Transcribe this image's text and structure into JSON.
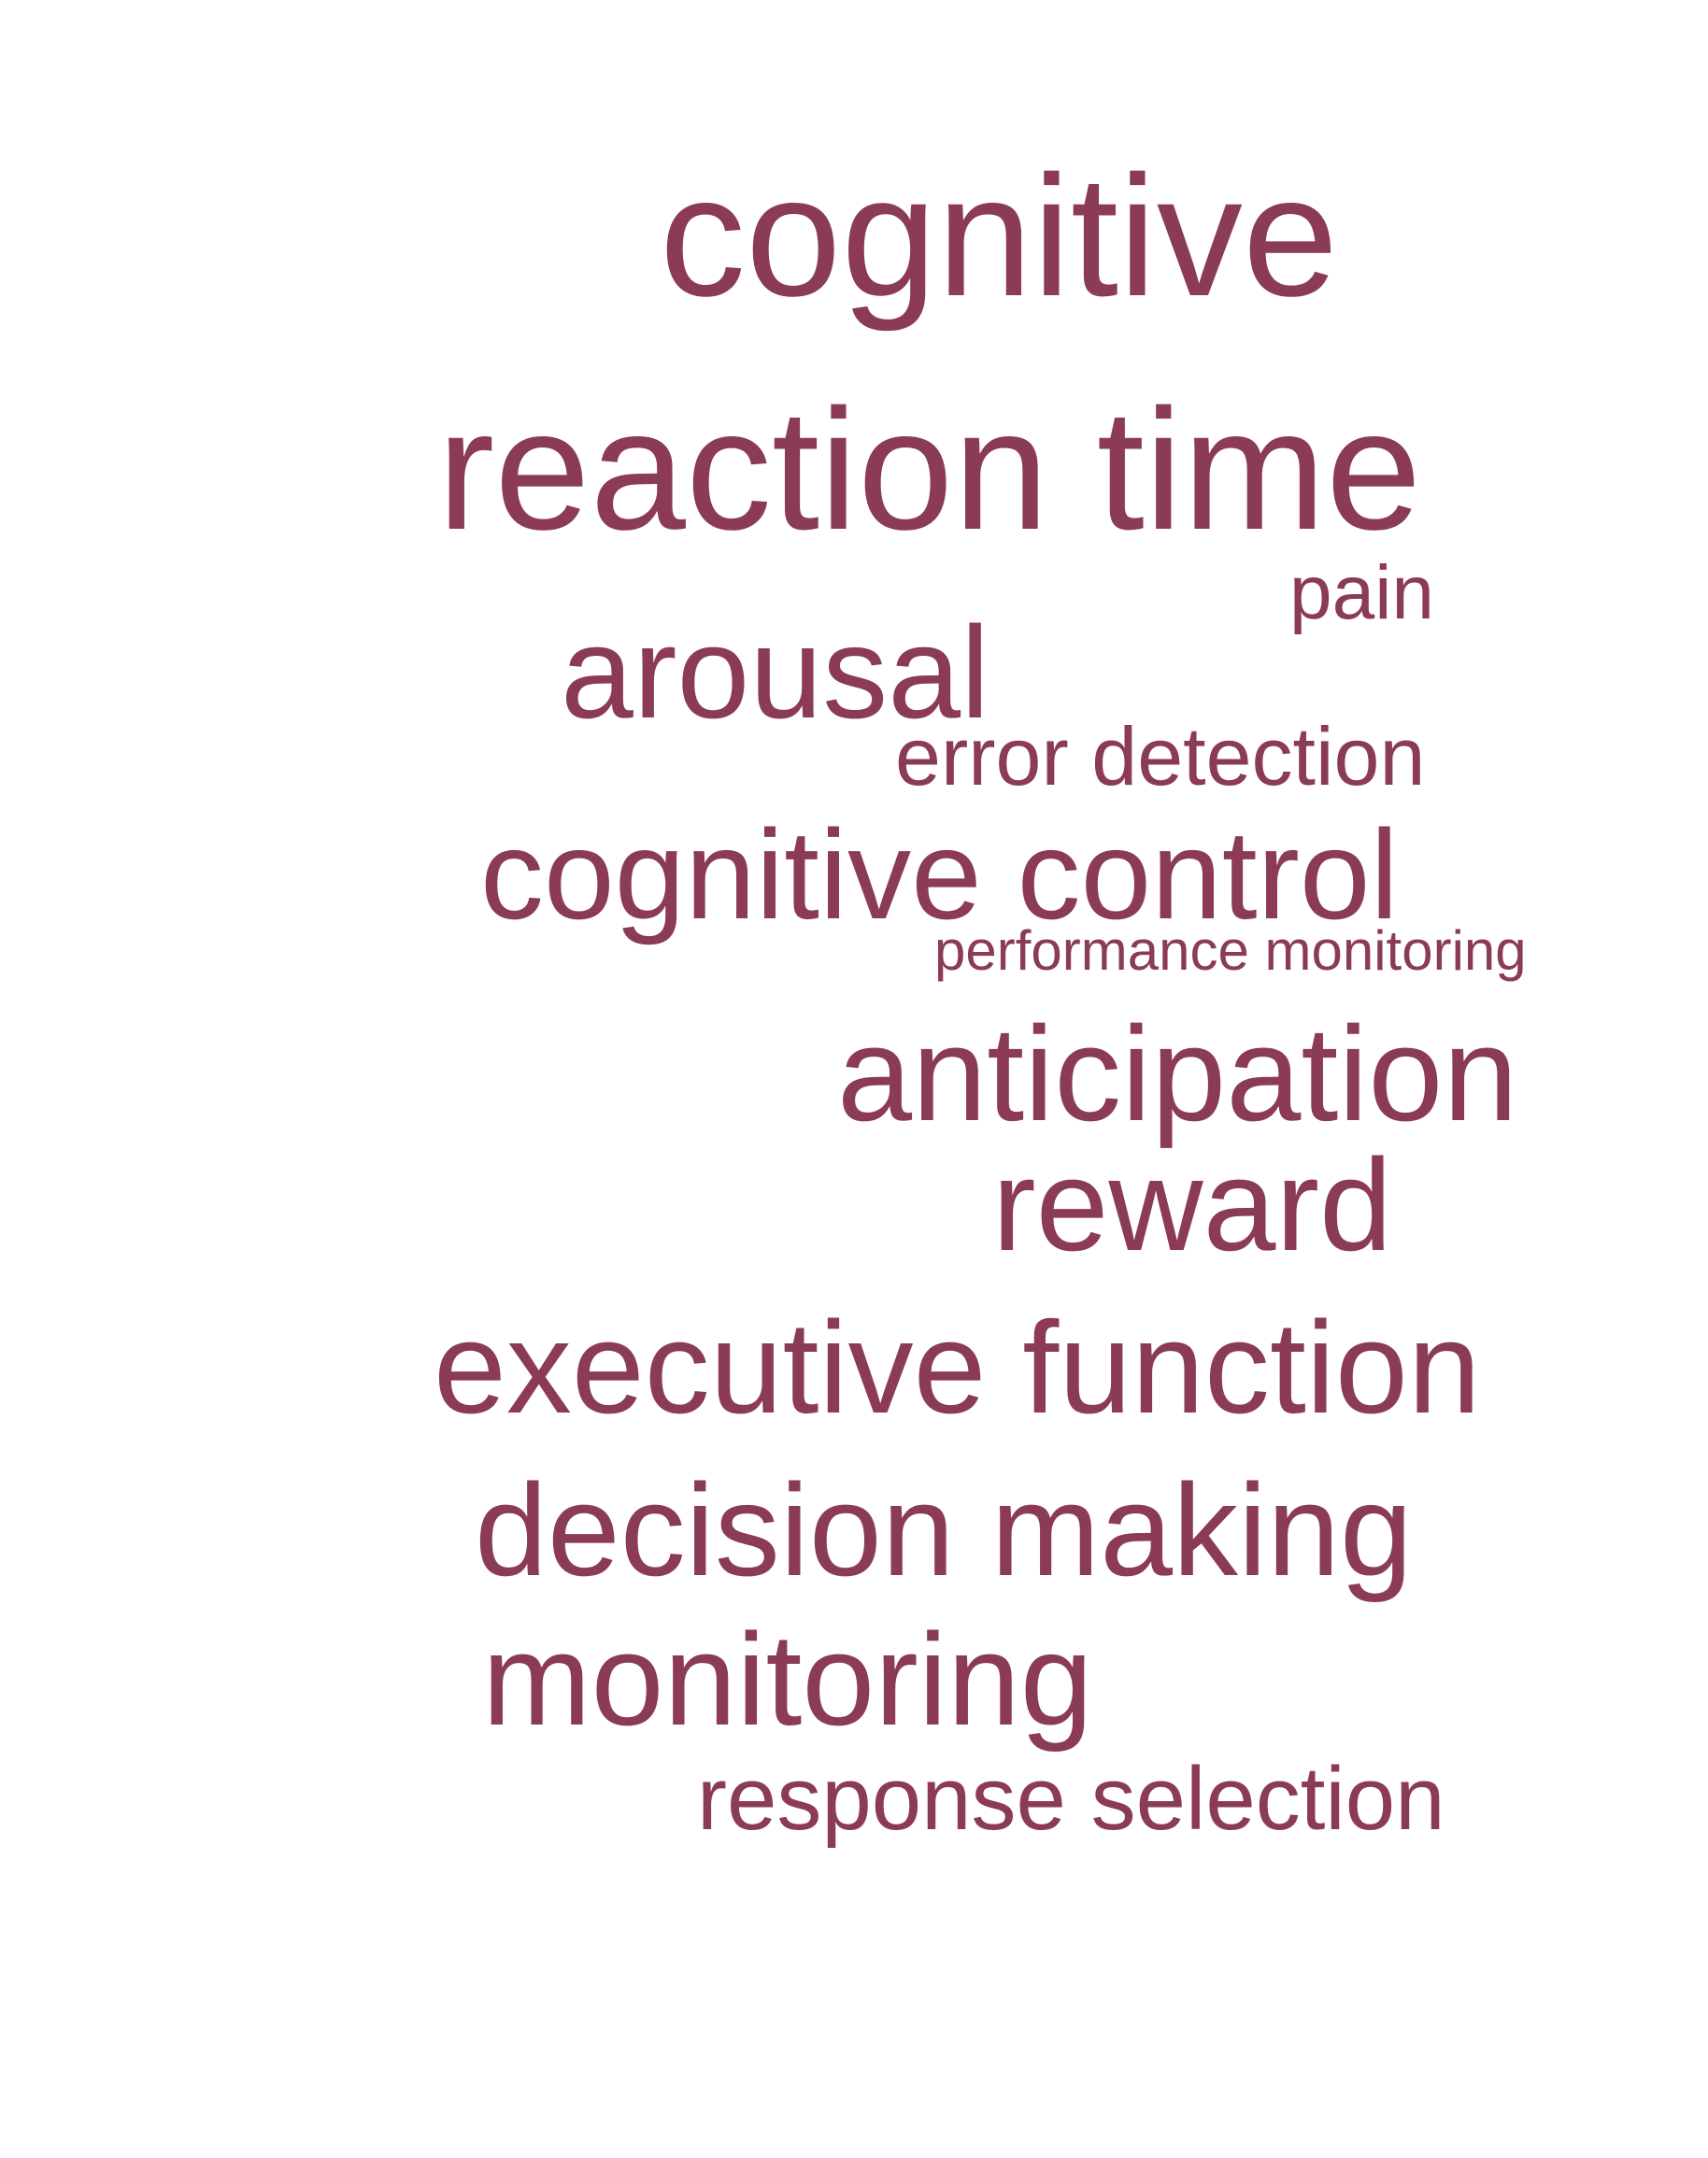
{
  "style": {
    "word_color": "#8b3b57",
    "background": "#ffffff"
  },
  "words": [
    {
      "id": "cognitive",
      "text": "cognitive"
    },
    {
      "id": "reaction-time",
      "text": "reaction time"
    },
    {
      "id": "pain",
      "text": "pain"
    },
    {
      "id": "arousal",
      "text": "arousal"
    },
    {
      "id": "error-detection",
      "text": "error detection"
    },
    {
      "id": "cognitive-control",
      "text": "cognitive control"
    },
    {
      "id": "performance-monitoring",
      "text": "performance monitoring"
    },
    {
      "id": "anticipation",
      "text": "anticipation"
    },
    {
      "id": "reward",
      "text": "reward"
    },
    {
      "id": "executive-function",
      "text": "executive function"
    },
    {
      "id": "decision-making",
      "text": "decision making"
    },
    {
      "id": "monitoring",
      "text": "monitoring"
    },
    {
      "id": "response-selection",
      "text": "response selection"
    }
  ]
}
